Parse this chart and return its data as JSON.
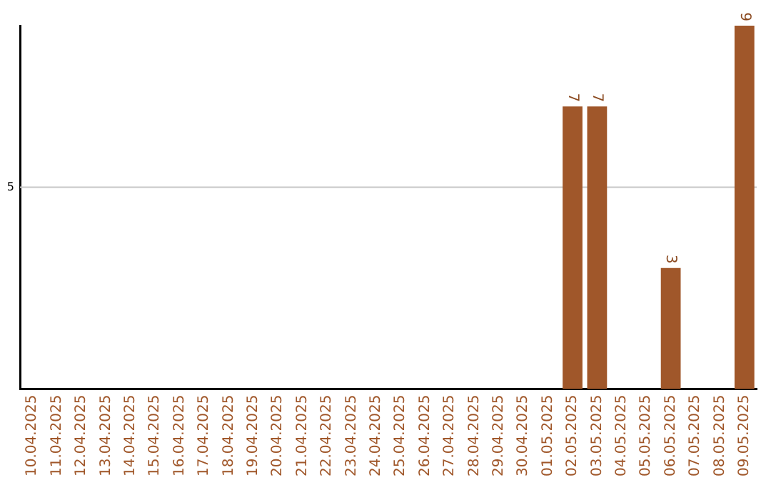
{
  "chart_data": {
    "type": "bar",
    "categories": [
      "10.04.2025",
      "11.04.2025",
      "12.04.2025",
      "13.04.2025",
      "14.04.2025",
      "15.04.2025",
      "16.04.2025",
      "17.04.2025",
      "18.04.2025",
      "19.04.2025",
      "20.04.2025",
      "21.04.2025",
      "22.04.2025",
      "23.04.2025",
      "24.04.2025",
      "25.04.2025",
      "26.04.2025",
      "27.04.2025",
      "28.04.2025",
      "29.04.2025",
      "30.04.2025",
      "01.05.2025",
      "02.05.2025",
      "03.05.2025",
      "04.05.2025",
      "05.05.2025",
      "06.05.2025",
      "07.05.2025",
      "08.05.2025",
      "09.05.2025"
    ],
    "values": [
      null,
      null,
      null,
      null,
      null,
      null,
      null,
      null,
      null,
      null,
      null,
      null,
      null,
      null,
      null,
      null,
      null,
      null,
      null,
      null,
      null,
      null,
      7,
      7,
      null,
      null,
      3,
      null,
      null,
      9
    ],
    "data_labels": true,
    "color": "#a0572a",
    "ref_lines": [
      {
        "axis": "y",
        "value": 5,
        "label": "5",
        "color": "#c8c8c8"
      }
    ]
  }
}
